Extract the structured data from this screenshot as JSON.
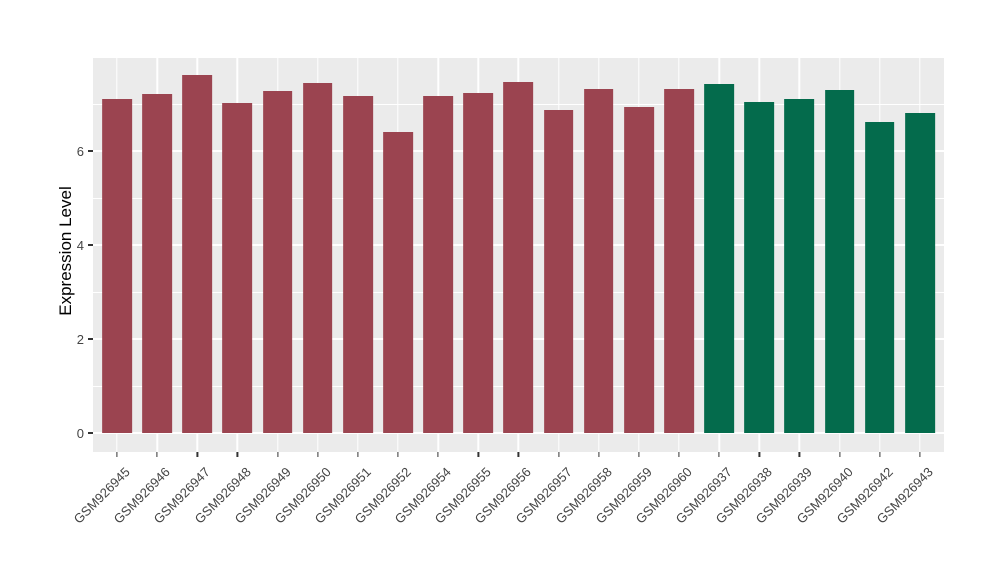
{
  "chart_data": {
    "type": "bar",
    "title": "",
    "xlabel": "",
    "ylabel": "Expression Level",
    "yticks": [
      0,
      2,
      4,
      6
    ],
    "ylim": [
      -0.4,
      7.98
    ],
    "grid": "on",
    "legend_position": "none",
    "panel_background": "#EBEBEB",
    "gridline_color": "#FFFFFF",
    "axis_text_color": "#444444",
    "tick_color": "#333333",
    "categories": [
      "GSM926945",
      "GSM926946",
      "GSM926947",
      "GSM926948",
      "GSM926949",
      "GSM926950",
      "GSM926951",
      "GSM926952",
      "GSM926954",
      "GSM926955",
      "GSM926956",
      "GSM926957",
      "GSM926958",
      "GSM926959",
      "GSM926960",
      "GSM926937",
      "GSM926938",
      "GSM926939",
      "GSM926940",
      "GSM926942",
      "GSM926943"
    ],
    "values": [
      7.1,
      7.22,
      7.61,
      7.02,
      7.27,
      7.44,
      7.16,
      6.41,
      7.18,
      7.24,
      7.46,
      6.87,
      7.33,
      6.93,
      7.31,
      7.42,
      7.05,
      7.1,
      7.29,
      6.61,
      6.81
    ],
    "groups": [
      "group1",
      "group1",
      "group1",
      "group1",
      "group1",
      "group1",
      "group1",
      "group1",
      "group1",
      "group1",
      "group1",
      "group1",
      "group1",
      "group1",
      "group1",
      "group2",
      "group2",
      "group2",
      "group2",
      "group2",
      "group2"
    ],
    "palette": {
      "group1": "#9B4450",
      "group2": "#046B4C"
    }
  }
}
